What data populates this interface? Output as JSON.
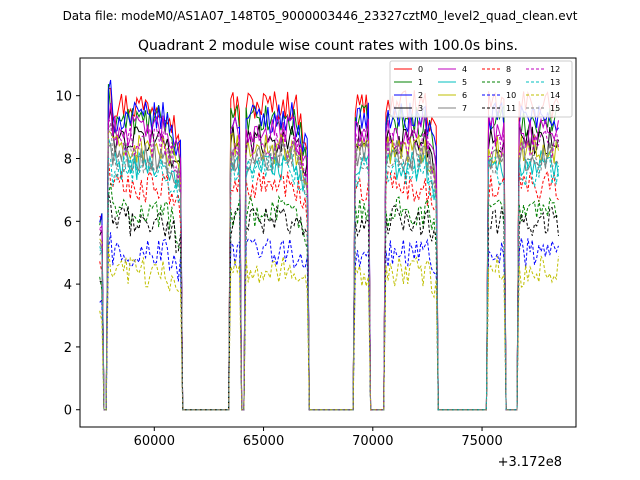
{
  "suptitle": "Data file: modeM0/AS1A07_148T05_9000003446_23327cztM0_level2_quad_clean.evt",
  "chart_data": {
    "type": "line",
    "title": "Quadrant 2 module wise count rates with 100.0s bins.",
    "xlabel": "",
    "ylabel": "",
    "x_offset_label": "+3.172e8",
    "xlim": [
      56600,
      79300
    ],
    "ylim": [
      -0.55,
      11.2
    ],
    "x_ticks": [
      60000,
      65000,
      70000,
      75000
    ],
    "y_ticks": [
      0,
      2,
      4,
      6,
      8,
      10
    ],
    "x_tick_labels": [
      "60000",
      "65000",
      "70000",
      "75000"
    ],
    "y_tick_labels": [
      "0",
      "2",
      "4",
      "6",
      "8",
      "10"
    ],
    "legend_position": "upper-right",
    "legend_columns": 4,
    "segments": [
      {
        "start": 57900,
        "end": 61200
      },
      {
        "start": 63500,
        "end": 63900
      },
      {
        "start": 64200,
        "end": 67000
      },
      {
        "start": 69200,
        "end": 69800
      },
      {
        "start": 70600,
        "end": 72900
      },
      {
        "start": 75300,
        "end": 76000
      },
      {
        "start": 76700,
        "end": 78500
      }
    ],
    "bin_seconds": 100,
    "series": [
      {
        "name": "0",
        "color": "#ff0000",
        "dash": "solid",
        "level": 9.7
      },
      {
        "name": "1",
        "color": "#008000",
        "dash": "solid",
        "level": 9.2
      },
      {
        "name": "2",
        "color": "#0000ff",
        "dash": "solid",
        "level": 9.3
      },
      {
        "name": "3",
        "color": "#000000",
        "dash": "solid",
        "level": 8.6
      },
      {
        "name": "4",
        "color": "#bf00bf",
        "dash": "solid",
        "level": 8.9
      },
      {
        "name": "5",
        "color": "#00bfbf",
        "dash": "solid",
        "level": 7.8
      },
      {
        "name": "6",
        "color": "#bfbf00",
        "dash": "solid",
        "level": 8.3
      },
      {
        "name": "7",
        "color": "#808080",
        "dash": "solid",
        "level": 8.1
      },
      {
        "name": "8",
        "color": "#ff0000",
        "dash": "dashed",
        "level": 7.1
      },
      {
        "name": "9",
        "color": "#008000",
        "dash": "dashed",
        "level": 6.3
      },
      {
        "name": "10",
        "color": "#0000ff",
        "dash": "dashed",
        "level": 5.0
      },
      {
        "name": "11",
        "color": "#000000",
        "dash": "dashed",
        "level": 6.0
      },
      {
        "name": "12",
        "color": "#bf00bf",
        "dash": "dashed",
        "level": 8.5
      },
      {
        "name": "13",
        "color": "#00bfbf",
        "dash": "dashed",
        "level": 7.6
      },
      {
        "name": "14",
        "color": "#bfbf00",
        "dash": "dashed",
        "level": 4.4
      },
      {
        "name": "15",
        "color": "#808080",
        "dash": "dashed",
        "level": 8.0
      }
    ]
  }
}
